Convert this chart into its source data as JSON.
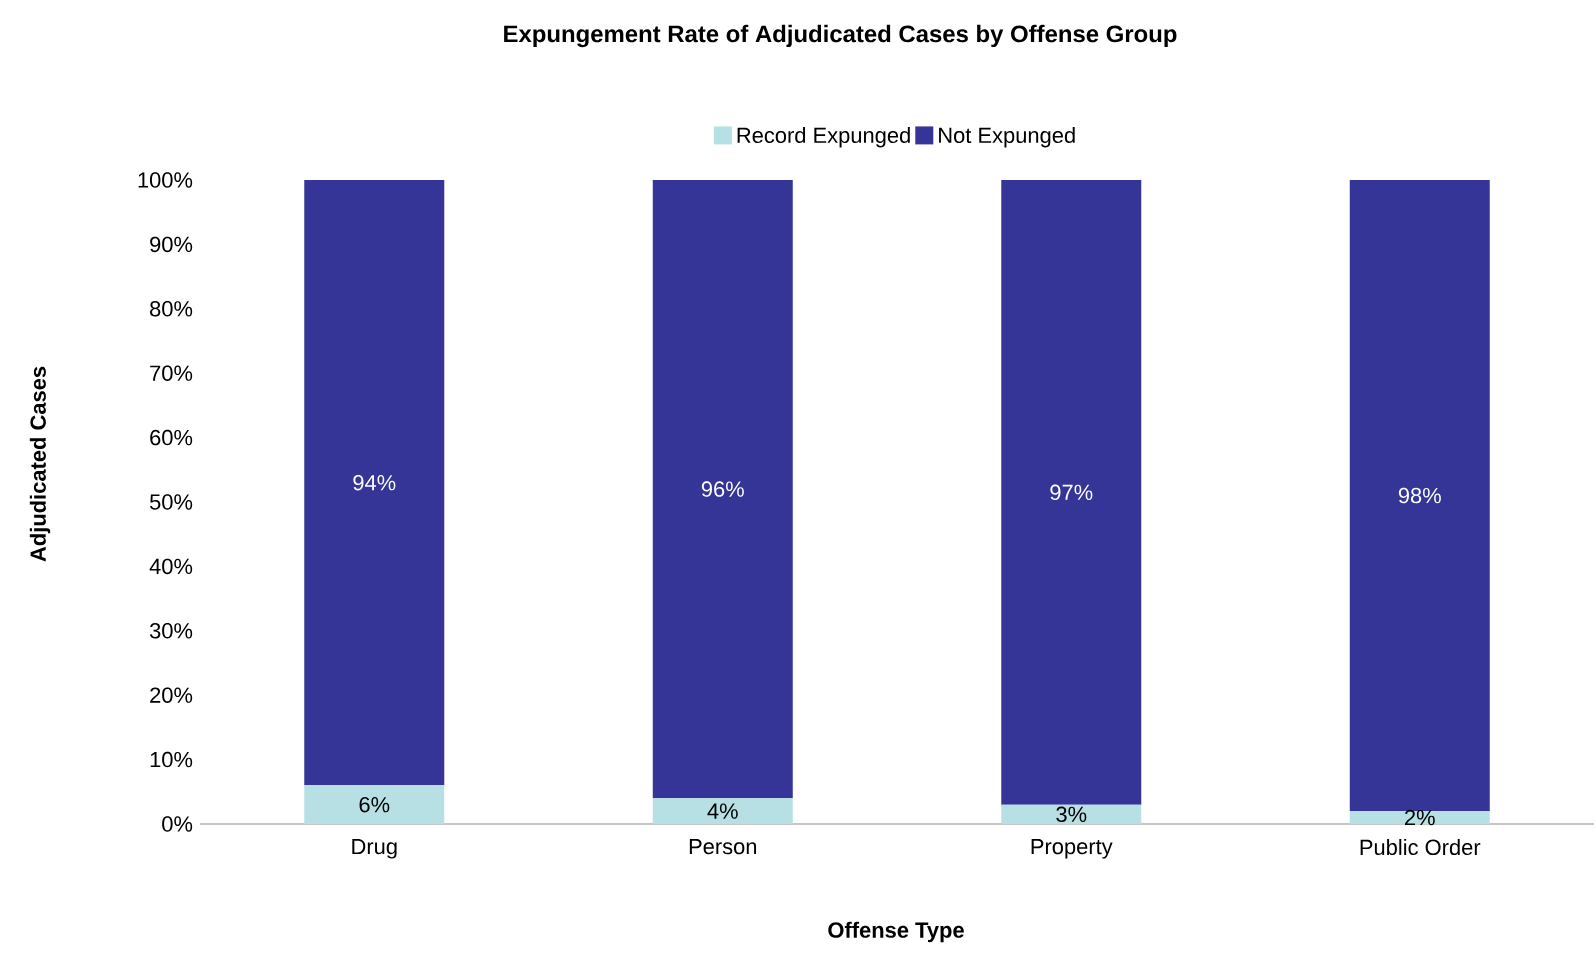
{
  "chart_data": {
    "type": "bar",
    "stacked": true,
    "title": "Expungement Rate of Adjudicated Cases by Offense Group",
    "xlabel": "Offense Type",
    "ylabel": "Adjudicated Cases",
    "categories": [
      "Drug",
      "Person",
      "Property",
      "Public Order"
    ],
    "series": [
      {
        "name": "Record Expunged",
        "color": "#b6e0e4",
        "values": [
          6,
          4,
          3,
          2
        ],
        "value_labels": [
          "6%",
          "4%",
          "3%",
          "2%"
        ]
      },
      {
        "name": "Not Expunged",
        "color": "#353598",
        "values": [
          94,
          96,
          97,
          98
        ],
        "value_labels": [
          "94%",
          "96%",
          "97%",
          "98%"
        ]
      }
    ],
    "ylim": [
      0,
      100
    ],
    "yticks": [
      {
        "value": 0,
        "label": "0%"
      },
      {
        "value": 10,
        "label": "10%"
      },
      {
        "value": 20,
        "label": "20%"
      },
      {
        "value": 30,
        "label": "30%"
      },
      {
        "value": 40,
        "label": "40%"
      },
      {
        "value": 50,
        "label": "50%"
      },
      {
        "value": 60,
        "label": "60%"
      },
      {
        "value": 70,
        "label": "70%"
      },
      {
        "value": 80,
        "label": "80%"
      },
      {
        "value": 90,
        "label": "90%"
      },
      {
        "value": 100,
        "label": "100%"
      }
    ],
    "legend": "top"
  }
}
